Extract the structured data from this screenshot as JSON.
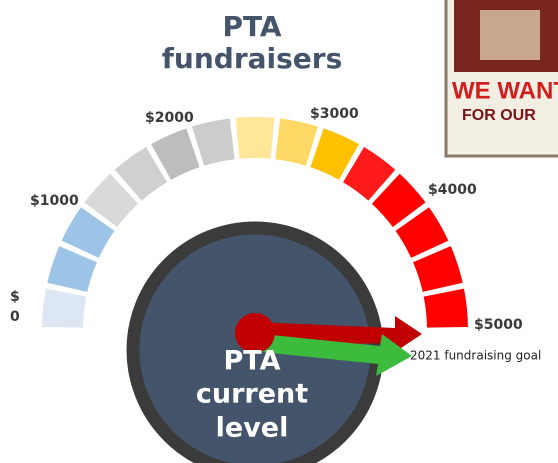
{
  "header": {
    "title_lines": [
      "PTA",
      "fundraisers"
    ]
  },
  "gauge": {
    "labels": [
      {
        "lines": [
          "$",
          "0"
        ]
      },
      {
        "lines": [
          "$1000"
        ]
      },
      {
        "lines": [
          "$2000"
        ]
      },
      {
        "lines": [
          "$3000"
        ]
      },
      {
        "lines": [
          "$4000"
        ]
      },
      {
        "lines": [
          "$5000"
        ]
      }
    ],
    "center_lines": [
      "PTA",
      "current",
      "level"
    ],
    "goal_note": "2021 fundraising goal"
  },
  "poster": {
    "lines": [
      "WE WANT",
      "FOR OUR"
    ]
  }
}
